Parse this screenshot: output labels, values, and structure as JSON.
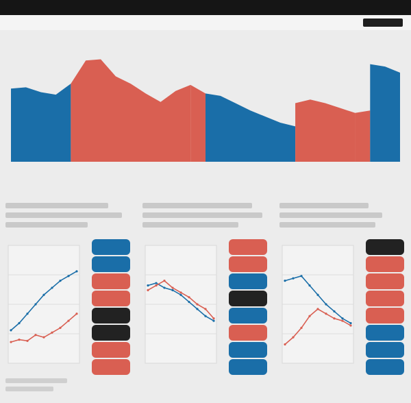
{
  "colors": {
    "democrat": "#1a6ea8",
    "republican": "#d95f52",
    "neutral": "#222222",
    "background": "#ececec",
    "topbar": "#151515"
  },
  "header": {
    "title": "",
    "subtitle": ""
  },
  "intro": {
    "line1": "",
    "line2": ""
  },
  "chart_data": [
    {
      "type": "area",
      "title": "",
      "xlabel": "",
      "ylabel": "",
      "ylim": [
        0,
        100
      ],
      "grid": false,
      "legend": "none",
      "segments": [
        {
          "party": "democrat",
          "x": [
            0,
            1,
            2,
            3,
            4
          ],
          "y": [
            60,
            61,
            57,
            55,
            64
          ]
        },
        {
          "party": "republican",
          "x": [
            4,
            5,
            6,
            7,
            8,
            9,
            10,
            11,
            12
          ],
          "y": [
            64,
            83,
            84,
            70,
            64,
            56,
            49,
            58,
            63
          ]
        },
        {
          "party": "republican",
          "x": [
            12,
            13
          ],
          "y": [
            63,
            56
          ]
        },
        {
          "party": "democrat",
          "x": [
            13,
            14,
            15,
            16,
            17,
            18,
            19
          ],
          "y": [
            56,
            54,
            48,
            42,
            37,
            32,
            29
          ]
        },
        {
          "party": "republican",
          "x": [
            19,
            20,
            21,
            22,
            23
          ],
          "y": [
            48,
            51,
            48,
            44,
            40
          ]
        },
        {
          "party": "republican",
          "x": [
            23,
            24
          ],
          "y": [
            40,
            42
          ]
        },
        {
          "party": "democrat",
          "x": [
            24,
            25,
            26
          ],
          "y": [
            80,
            78,
            73
          ]
        }
      ]
    },
    {
      "type": "line",
      "title": "",
      "series": [
        {
          "party": "democrat",
          "values": [
            28,
            34,
            42,
            50,
            58,
            64,
            70,
            74,
            78
          ]
        },
        {
          "party": "republican",
          "values": [
            18,
            20,
            19,
            24,
            22,
            26,
            30,
            36,
            42
          ]
        }
      ],
      "ylim": [
        0,
        100
      ],
      "strip": [
        "democrat",
        "democrat",
        "republican",
        "republican",
        "neutral",
        "neutral",
        "republican",
        "republican"
      ]
    },
    {
      "type": "line",
      "title": "",
      "series": [
        {
          "party": "democrat",
          "values": [
            66,
            68,
            64,
            62,
            58,
            52,
            46,
            40,
            36
          ]
        },
        {
          "party": "republican",
          "values": [
            62,
            66,
            70,
            64,
            60,
            56,
            50,
            46,
            38
          ]
        }
      ],
      "ylim": [
        0,
        100
      ],
      "strip": [
        "republican",
        "republican",
        "democrat",
        "neutral",
        "democrat",
        "republican",
        "democrat",
        "democrat"
      ]
    },
    {
      "type": "line",
      "title": "",
      "series": [
        {
          "party": "democrat",
          "values": [
            70,
            72,
            74,
            66,
            58,
            50,
            44,
            38,
            34
          ]
        },
        {
          "party": "republican",
          "values": [
            16,
            22,
            30,
            40,
            46,
            42,
            38,
            36,
            32
          ]
        }
      ],
      "ylim": [
        0,
        100
      ],
      "strip": [
        "neutral",
        "republican",
        "republican",
        "republican",
        "republican",
        "democrat",
        "democrat",
        "democrat"
      ]
    }
  ]
}
